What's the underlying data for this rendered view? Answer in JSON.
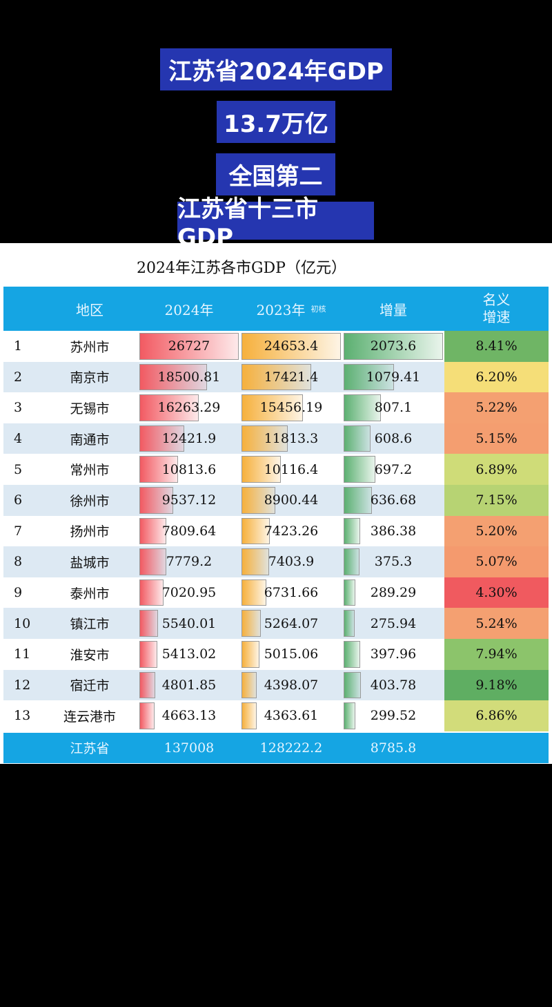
{
  "titles": [
    "江苏省2024年GDP",
    "13.7万亿",
    "全国第二",
    "江苏省十三市GDP"
  ],
  "subtitle": "2024年江苏各市GDP（亿元）",
  "headers": {
    "region": "地区",
    "y2024": "2024年",
    "y2023": "2023年",
    "y2023_note": "初核",
    "increase": "增量",
    "growth_l1": "名义",
    "growth_l2": "增速"
  },
  "rows": [
    {
      "rank": "1",
      "city": "苏州市",
      "y2024": "26727",
      "y2023": "24653.4",
      "inc": "2073.6",
      "growth": "8.41%",
      "color": "#6fb565"
    },
    {
      "rank": "2",
      "city": "南京市",
      "y2024": "18500.81",
      "y2023": "17421.4",
      "inc": "1079.41",
      "growth": "6.20%",
      "color": "#f5de78"
    },
    {
      "rank": "3",
      "city": "无锡市",
      "y2024": "16263.29",
      "y2023": "15456.19",
      "inc": "807.1",
      "growth": "5.22%",
      "color": "#f4a071"
    },
    {
      "rank": "4",
      "city": "南通市",
      "y2024": "12421.9",
      "y2023": "11813.3",
      "inc": "608.6",
      "growth": "5.15%",
      "color": "#f49e70"
    },
    {
      "rank": "5",
      "city": "常州市",
      "y2024": "10813.6",
      "y2023": "10116.4",
      "inc": "697.2",
      "growth": "6.89%",
      "color": "#cfdc78"
    },
    {
      "rank": "6",
      "city": "徐州市",
      "y2024": "9537.12",
      "y2023": "8900.44",
      "inc": "636.68",
      "growth": "7.15%",
      "color": "#b7d373"
    },
    {
      "rank": "7",
      "city": "扬州市",
      "y2024": "7809.64",
      "y2023": "7423.26",
      "inc": "386.38",
      "growth": "5.20%",
      "color": "#f4a071"
    },
    {
      "rank": "8",
      "city": "盐城市",
      "y2024": "7779.2",
      "y2023": "7403.9",
      "inc": "375.3",
      "growth": "5.07%",
      "color": "#f49a6e"
    },
    {
      "rank": "9",
      "city": "泰州市",
      "y2024": "7020.95",
      "y2023": "6731.66",
      "inc": "289.29",
      "growth": "4.30%",
      "color": "#f05a5f"
    },
    {
      "rank": "10",
      "city": "镇江市",
      "y2024": "5540.01",
      "y2023": "5264.07",
      "inc": "275.94",
      "growth": "5.24%",
      "color": "#f4a071"
    },
    {
      "rank": "11",
      "city": "淮安市",
      "y2024": "5413.02",
      "y2023": "5015.06",
      "inc": "397.96",
      "growth": "7.94%",
      "color": "#8cc46b"
    },
    {
      "rank": "12",
      "city": "宿迁市",
      "y2024": "4801.85",
      "y2023": "4398.07",
      "inc": "403.78",
      "growth": "9.18%",
      "color": "#5fae62"
    },
    {
      "rank": "13",
      "city": "连云港市",
      "y2024": "4663.13",
      "y2023": "4363.61",
      "inc": "299.52",
      "growth": "6.86%",
      "color": "#d2dc7a"
    }
  ],
  "total": {
    "city": "江苏省",
    "y2024": "137008",
    "y2023": "128222.2",
    "inc": "8785.8"
  },
  "bar_colors": {
    "y2024": "#f25a62",
    "y2023": "#f6b03c",
    "inc": "#5cb071"
  }
}
